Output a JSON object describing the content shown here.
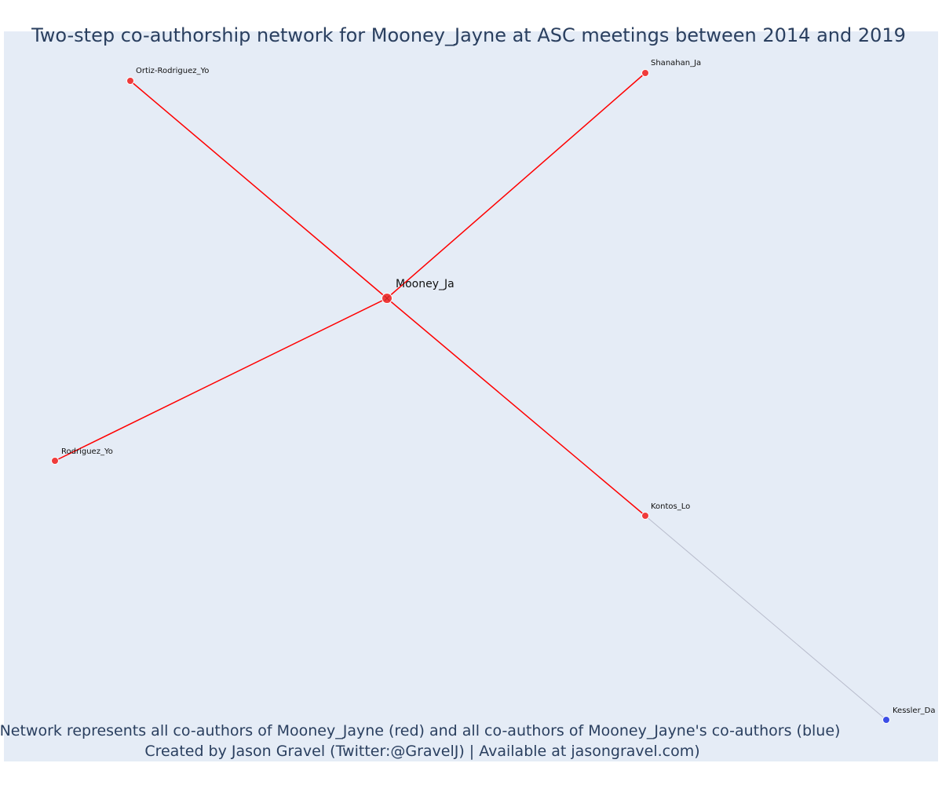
{
  "title": "Two-step co-authorship network for Mooney_Jayne at ASC meetings between 2014 and 2019",
  "footer": {
    "line1": "Network represents all co-authors of Mooney_Jayne (red) and all co-authors of Mooney_Jayne's co-authors (blue)",
    "line2": "Created by Jason Gravel (Twitter:@GravelJ) | Available at jasongravel.com)"
  },
  "colors": {
    "plot_bg": "#e5ecf6",
    "first_degree": "#ef3b3b",
    "second_degree": "#3c4ee6",
    "first_edge": "#ff0000",
    "second_edge": "#b8bccc",
    "text": "#2a3f5f"
  },
  "chart_data": {
    "type": "network",
    "center": "Mooney_Ja",
    "nodes": [
      {
        "id": "Mooney_Ja",
        "group": "center"
      },
      {
        "id": "Ortiz-Rodriguez_Yo",
        "group": "first"
      },
      {
        "id": "Shanahan_Ja",
        "group": "first"
      },
      {
        "id": "Rodriguez_Yo",
        "group": "first"
      },
      {
        "id": "Kontos_Lo",
        "group": "first"
      },
      {
        "id": "Kessler_Da",
        "group": "second"
      }
    ],
    "edges": [
      {
        "source": "Mooney_Ja",
        "target": "Ortiz-Rodriguez_Yo",
        "group": "first"
      },
      {
        "source": "Mooney_Ja",
        "target": "Shanahan_Ja",
        "group": "first"
      },
      {
        "source": "Mooney_Ja",
        "target": "Rodriguez_Yo",
        "group": "first"
      },
      {
        "source": "Mooney_Ja",
        "target": "Kontos_Lo",
        "group": "first"
      },
      {
        "source": "Kontos_Lo",
        "target": "Kessler_Da",
        "group": "second"
      }
    ]
  }
}
